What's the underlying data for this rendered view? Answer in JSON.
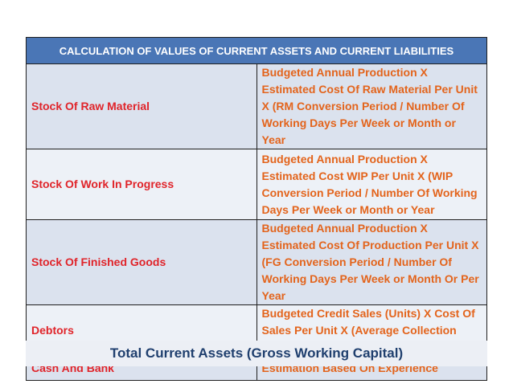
{
  "table": {
    "header": "CALCULATION OF VALUES OF CURRENT ASSETS AND CURRENT LIABILITIES",
    "rows": [
      {
        "label": "Stock Of Raw Material",
        "formula": "Budgeted Annual Production X Estimated Cost Of Raw Material Per Unit X (RM Conversion Period / Number Of Working Days Per Week or Month or Year"
      },
      {
        "label": "Stock Of Work In Progress",
        "formula": "Budgeted Annual Production X Estimated Cost WIP Per Unit X (WIP Conversion Period / Number Of Working Days Per Week or Month or Year"
      },
      {
        "label": "Stock Of Finished Goods",
        "formula": "Budgeted Annual Production X Estimated Cost Of Production Per Unit X (FG Conversion Period / Number Of Working Days Per Week or Month Or Per Year"
      },
      {
        "label": "Debtors",
        "formula": "Budgeted Credit Sales (Units) X Cost Of Sales Per Unit X (Average Collection Period/ Number Of Working Days)"
      },
      {
        "label": "Cash And Bank",
        "formula": " Estimation Based On Experience"
      }
    ]
  },
  "footer": {
    "total": "Total Current Assets  (Gross Working Capital)"
  }
}
